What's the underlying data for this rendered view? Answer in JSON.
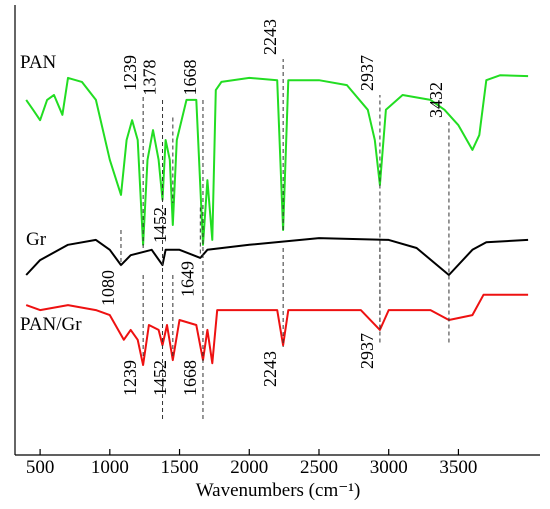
{
  "chart_data": {
    "type": "line",
    "xlabel": "Wavenumbers (cm⁻¹)",
    "xlim": [
      320,
      4085
    ],
    "ylim": [
      0,
      100
    ],
    "xticks": [
      500,
      1000,
      1500,
      2000,
      2500,
      3000,
      3500
    ],
    "series": [
      {
        "name": "PAN",
        "color": "#22dd22",
        "x": [
          400,
          450,
          500,
          550,
          600,
          660,
          700,
          800,
          900,
          1000,
          1080,
          1120,
          1160,
          1200,
          1239,
          1270,
          1310,
          1350,
          1378,
          1400,
          1430,
          1452,
          1480,
          1550,
          1620,
          1668,
          1700,
          1735,
          1760,
          1800,
          2000,
          2200,
          2243,
          2280,
          2500,
          2700,
          2850,
          2900,
          2937,
          2980,
          3100,
          3300,
          3400,
          3500,
          3600,
          3650,
          3700,
          3800,
          4000
        ],
        "values": [
          78.9,
          76.7,
          74.4,
          78.9,
          80,
          75.6,
          83.8,
          82.9,
          78.9,
          65.6,
          57.8,
          70,
          74.4,
          70,
          46.7,
          65.6,
          72.2,
          65.6,
          56.7,
          70,
          65.6,
          51.1,
          70,
          78.9,
          78.9,
          46.7,
          61.1,
          47.8,
          81.1,
          82.9,
          83.8,
          83.3,
          50,
          83.3,
          83.3,
          82.2,
          76.7,
          70,
          60,
          76.7,
          80,
          78.9,
          76.7,
          73.3,
          67.8,
          71.1,
          83.3,
          84.4,
          84.2
        ]
      },
      {
        "name": "Gr",
        "color": "#000000",
        "x": [
          400,
          500,
          700,
          900,
          1000,
          1080,
          1150,
          1300,
          1378,
          1400,
          1500,
          1649,
          1700,
          2000,
          2500,
          3000,
          3200,
          3432,
          3600,
          3700,
          4000
        ],
        "values": [
          40,
          43.3,
          46.7,
          47.8,
          45.6,
          42.2,
          44.4,
          45.6,
          42.2,
          45.6,
          45.6,
          43.8,
          45.6,
          46.7,
          48.2,
          47.8,
          46,
          40,
          45.6,
          47.3,
          47.8
        ]
      },
      {
        "name": "PAN/Gr",
        "color": "#ee1111",
        "x": [
          400,
          500,
          700,
          900,
          1000,
          1100,
          1150,
          1200,
          1239,
          1280,
          1350,
          1378,
          1410,
          1452,
          1500,
          1620,
          1668,
          1700,
          1735,
          1770,
          2000,
          2200,
          2243,
          2280,
          2800,
          2937,
          3000,
          3300,
          3432,
          3600,
          3680,
          4000
        ],
        "values": [
          33.3,
          32.2,
          33.3,
          32.2,
          31.1,
          25.6,
          27.8,
          25.6,
          20,
          28.9,
          27.8,
          24.4,
          28.9,
          21.1,
          30,
          28.9,
          21.1,
          27.8,
          20.4,
          32.2,
          32.2,
          32.2,
          24.4,
          32.2,
          32.2,
          27.8,
          32.2,
          32.2,
          30,
          31.1,
          35.6,
          35.6
        ]
      }
    ],
    "annotations": [
      {
        "x": 1239,
        "y1": 46,
        "y2": 80
      },
      {
        "x": 1378,
        "y1": 8,
        "y2": 79
      },
      {
        "x": 1452,
        "y1": 75,
        "y2": 56
      },
      {
        "x": 1668,
        "y1": 8,
        "y2": 79
      },
      {
        "x": 2243,
        "y1": 50,
        "y2": 88
      },
      {
        "x": 2937,
        "y1": 25,
        "y2": 80
      },
      {
        "x": 3432,
        "y1": 25,
        "y2": 74
      },
      {
        "x": 1080,
        "y1": 50,
        "y2": 42
      },
      {
        "x": 1649,
        "y1": 55,
        "y2": 44
      },
      {
        "x": 1239,
        "y1": 40,
        "y2": 22
      },
      {
        "x": 1452,
        "y1": 40,
        "y2": 22
      },
      {
        "x": 1668,
        "y1": 40,
        "y2": 22
      },
      {
        "x": 2243,
        "y1": 46,
        "y2": 24
      },
      {
        "x": 2937,
        "y1": 46,
        "y2": 28
      }
    ]
  }
}
